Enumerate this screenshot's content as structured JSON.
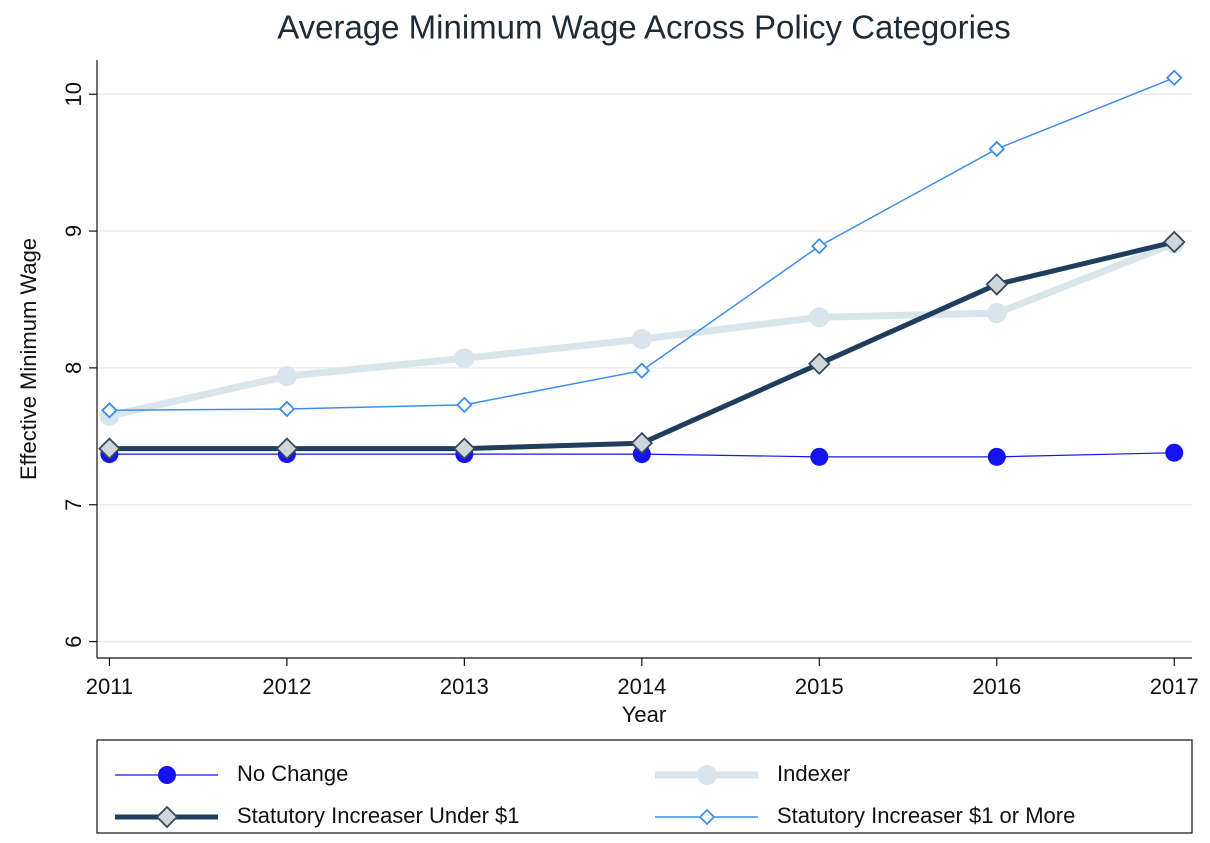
{
  "chart_data": {
    "type": "line",
    "title": "Average Minimum Wage Across Policy Categories",
    "x_label": "Year",
    "y_label": "Effective Minimum Wage",
    "x": [
      2011,
      2012,
      2013,
      2014,
      2015,
      2016,
      2017
    ],
    "series": [
      {
        "name": "No Change",
        "color": "#1414f0",
        "marker": "circle",
        "values": [
          7.37,
          7.37,
          7.37,
          7.37,
          7.35,
          7.35,
          7.38
        ]
      },
      {
        "name": "Indexer",
        "color": "#d8e5ed",
        "marker": "circle",
        "values": [
          7.65,
          7.94,
          8.07,
          8.21,
          8.37,
          8.4,
          8.91
        ]
      },
      {
        "name": "Statutory Increaser Under $1",
        "color": "#1f3d5c",
        "marker": "diamond",
        "values": [
          7.41,
          7.41,
          7.41,
          7.45,
          8.03,
          8.61,
          8.92
        ]
      },
      {
        "name": "Statutory Increaser $1 or More",
        "color": "#3d8ef0",
        "marker": "diamond",
        "values": [
          7.69,
          7.7,
          7.73,
          7.98,
          8.89,
          9.6,
          10.12
        ]
      }
    ],
    "xlim": [
      2010.93,
      2017.1
    ],
    "ylim": [
      5.88,
      10.25
    ],
    "xticks": [
      2011,
      2012,
      2013,
      2014,
      2015,
      2016,
      2017
    ],
    "yticks": [
      6,
      7,
      8,
      9,
      10
    ],
    "grid": true
  }
}
